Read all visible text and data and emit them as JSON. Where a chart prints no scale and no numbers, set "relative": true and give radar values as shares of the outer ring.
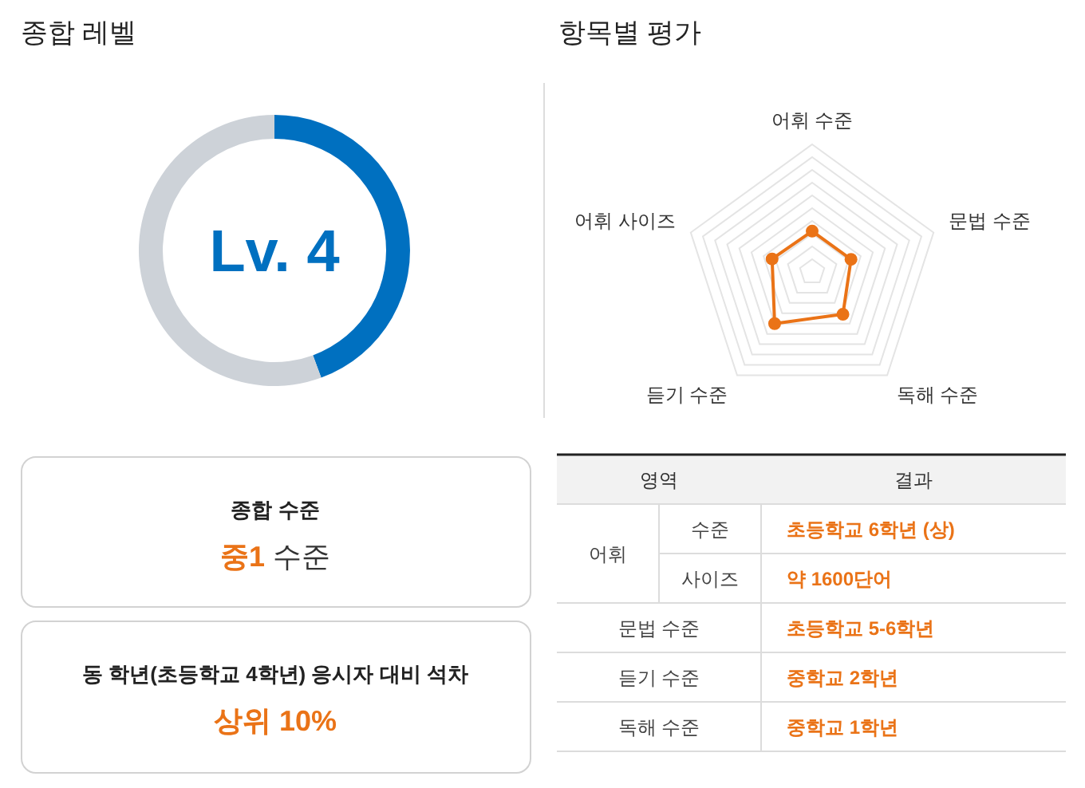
{
  "chart_data": [
    {
      "type": "donut",
      "title": "종합 레벨",
      "categories": [
        null,
        null
      ],
      "values": [
        44.4,
        55.6
      ],
      "colors": [
        "#0070c0",
        "#cdd2d8"
      ],
      "annotations": [
        "Lv. 4"
      ]
    },
    {
      "type": "radar",
      "title": "항목별 평가",
      "categories": [
        "어휘 수준",
        "문법 수준",
        "독해 수준",
        "듣기 수준",
        "어휘 사이즈"
      ],
      "relative": true,
      "grid": true,
      "marker": "circle",
      "series": [
        {
          "color": "#ea7317",
          "values": [
            0.32,
            0.32,
            0.41,
            0.5,
            0.33
          ]
        }
      ]
    },
    {
      "type": "other",
      "title": "종합 수준",
      "annotations": [
        "중1",
        "수준"
      ],
      "color": "#ea7317"
    },
    {
      "type": "other",
      "title": "동 학년(초등학교 4학년) 응시자 대비 석차",
      "annotations": [
        "상위 10%"
      ],
      "color": "#ea7317"
    },
    {
      "type": "other",
      "categories": [
        "영역",
        "결과"
      ],
      "y_categories": [
        "어휘",
        null,
        "문법 수준",
        "듣기 수준",
        "독해 수준"
      ],
      "y2_categories": [
        "수준",
        "사이즈",
        null,
        null,
        null
      ],
      "cell_labels": [
        [
          "초등학교 6학년 (상)"
        ],
        [
          "약 1600단어"
        ],
        [
          "초등학교 5-6학년"
        ],
        [
          "중학교 2학년"
        ],
        [
          "중학교 1학년"
        ]
      ],
      "color": "#ea7317"
    }
  ]
}
